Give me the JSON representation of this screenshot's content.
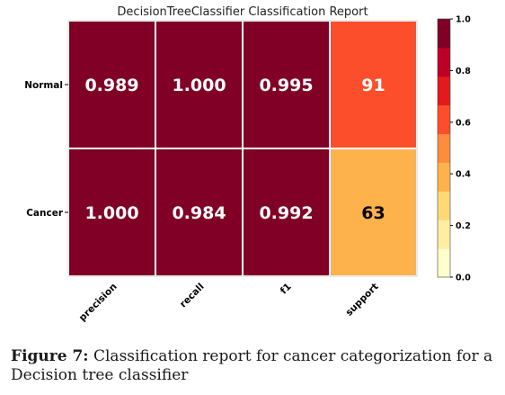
{
  "chart_data": {
    "type": "heatmap",
    "title": "DecisionTreeClassifier Classification Report",
    "rows": [
      "Normal",
      "Cancer"
    ],
    "columns": [
      "precision",
      "recall",
      "f1",
      "support"
    ],
    "values": [
      [
        0.989,
        1.0,
        0.995,
        91
      ],
      [
        1.0,
        0.984,
        0.992,
        63
      ]
    ],
    "cell_labels": [
      [
        "0.989",
        "1.000",
        "0.995",
        "91"
      ],
      [
        "1.000",
        "0.984",
        "0.992",
        "63"
      ]
    ],
    "support_color_level": [
      0.64,
      0.38
    ],
    "colorbar": {
      "ticks": [
        "0.0",
        "0.2",
        "0.4",
        "0.6",
        "0.8",
        "1.0"
      ],
      "range": [
        0,
        1
      ],
      "colors": [
        "#ffffcc",
        "#ffeda0",
        "#fed976",
        "#feb24c",
        "#fd8d3c",
        "#fc4e2a",
        "#e31a1c",
        "#bd0026",
        "#800026"
      ]
    },
    "grid": true,
    "legend": "right"
  },
  "caption": {
    "label": "Figure 7:",
    "text": "Classification report for cancer categorization for a Decision tree classifier"
  }
}
